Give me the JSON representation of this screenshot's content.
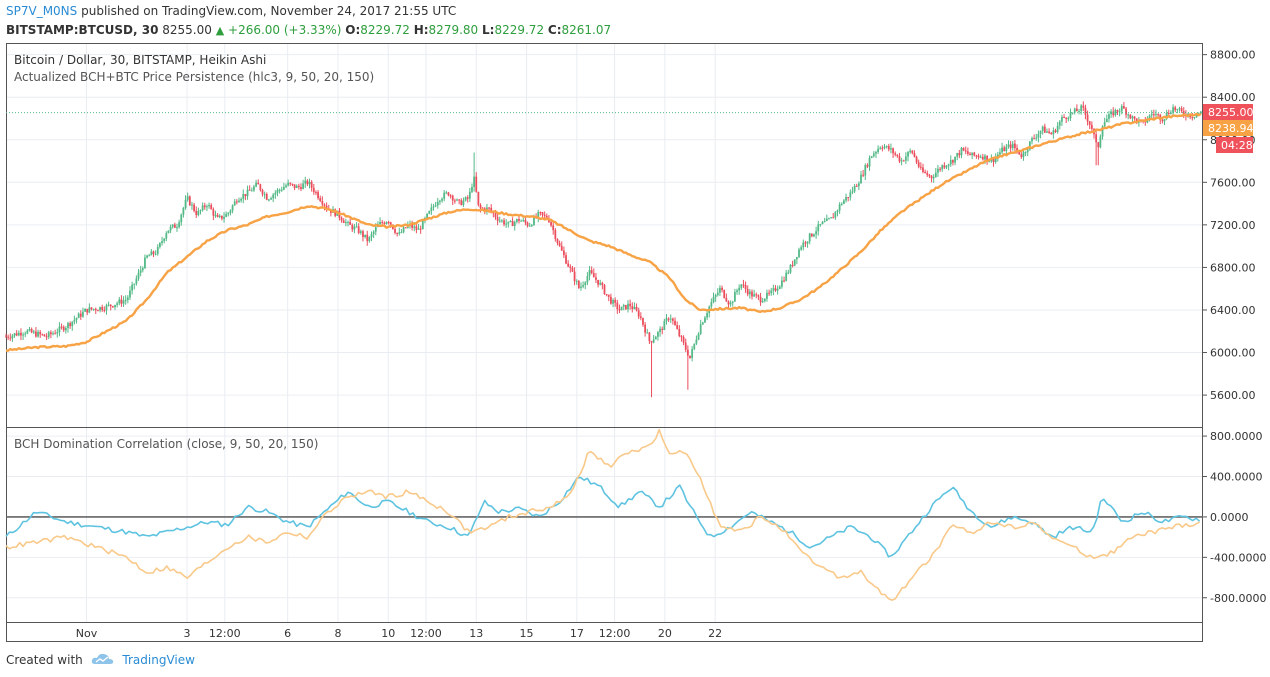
{
  "header": {
    "author": "SP7V_M0NS",
    "published": "published on TradingView.com, November 24, 2017 21:55 UTC",
    "symbol": "BITSTAMP:BTCUSD, 30",
    "last": "8255.00",
    "change": "+266.00 (+3.33%)",
    "o_label": "O:",
    "o": "8229.72",
    "h_label": "H:",
    "h": "8279.80",
    "l_label": "L:",
    "l": "8229.72",
    "c_label": "C:",
    "c": "8261.07"
  },
  "main_pane": {
    "title": "Bitcoin / Dollar, 30, BITSTAMP, Heikin Ashi",
    "indicator": "Actualized BCH+BTC Price Persistence (hlc3, 9, 50, 20, 150)",
    "price_badge": "8255.00",
    "indicator_badge": "8238.94",
    "countdown_badge": "04:28"
  },
  "lower_pane": {
    "title": "BCH Domination Correlation (close, 9, 50, 20, 150)"
  },
  "x_ticks": [
    "Nov",
    "3",
    "12:00",
    "6",
    "8",
    "10",
    "12:00",
    "13",
    "15",
    "17",
    "12:00",
    "20",
    "22"
  ],
  "colors": {
    "up": "#53b987",
    "down": "#eb4d5c",
    "orange": "#f7a245",
    "blue": "#5ec3e0",
    "light_orange": "#f9c98a",
    "badge_red": "#f0525c",
    "badge_orange": "#f7a245",
    "grid": "#e9edf2"
  },
  "chart_data": [
    {
      "type": "candlestick",
      "title": "Bitcoin / Dollar, 30, BITSTAMP, Heikin Ashi",
      "ylim": [
        5300,
        8900
      ],
      "yticks": [
        5600,
        6000,
        6400,
        6800,
        7200,
        7600,
        8000,
        8400,
        8800
      ],
      "ytick_labels": [
        "5600.00",
        "6000.00",
        "6400.00",
        "6800.00",
        "7200.00",
        "7600.00",
        "8000.00",
        "8400.00",
        "8800.00"
      ],
      "x_day_range": [
        -0.6,
        23.2
      ],
      "price_path": [
        [
          -0.6,
          6150
        ],
        [
          -0.2,
          6200
        ],
        [
          0.2,
          6150
        ],
        [
          0.6,
          6250
        ],
        [
          1.0,
          6400
        ],
        [
          1.4,
          6430
        ],
        [
          1.8,
          6500
        ],
        [
          2.2,
          6900
        ],
        [
          2.4,
          6950
        ],
        [
          2.6,
          7150
        ],
        [
          2.8,
          7200
        ],
        [
          3.0,
          7450
        ],
        [
          3.2,
          7300
        ],
        [
          3.4,
          7400
        ],
        [
          3.6,
          7250
        ],
        [
          3.8,
          7300
        ],
        [
          4.0,
          7450
        ],
        [
          4.2,
          7500
        ],
        [
          4.4,
          7580
        ],
        [
          4.6,
          7450
        ],
        [
          4.8,
          7520
        ],
        [
          5.0,
          7580
        ],
        [
          5.2,
          7550
        ],
        [
          5.4,
          7600
        ],
        [
          5.6,
          7480
        ],
        [
          5.8,
          7350
        ],
        [
          6.0,
          7300
        ],
        [
          6.2,
          7200
        ],
        [
          6.4,
          7150
        ],
        [
          6.6,
          7050
        ],
        [
          6.8,
          7200
        ],
        [
          7.0,
          7250
        ],
        [
          7.2,
          7100
        ],
        [
          7.4,
          7200
        ],
        [
          7.6,
          7150
        ],
        [
          7.8,
          7300
        ],
        [
          8.0,
          7450
        ],
        [
          8.2,
          7500
        ],
        [
          8.4,
          7400
        ],
        [
          8.6,
          7450
        ],
        [
          8.7,
          7650
        ],
        [
          8.8,
          7350
        ],
        [
          9.0,
          7350
        ],
        [
          9.2,
          7250
        ],
        [
          9.4,
          7200
        ],
        [
          9.6,
          7250
        ],
        [
          9.8,
          7200
        ],
        [
          10.0,
          7300
        ],
        [
          10.2,
          7250
        ],
        [
          10.4,
          7000
        ],
        [
          10.6,
          6800
        ],
        [
          10.8,
          6600
        ],
        [
          11.0,
          6750
        ],
        [
          11.2,
          6650
        ],
        [
          11.4,
          6500
        ],
        [
          11.6,
          6400
        ],
        [
          11.8,
          6450
        ],
        [
          12.0,
          6350
        ],
        [
          12.2,
          6100
        ],
        [
          12.4,
          6200
        ],
        [
          12.6,
          6350
        ],
        [
          12.8,
          6150
        ],
        [
          13.0,
          5950
        ],
        [
          13.2,
          6250
        ],
        [
          13.4,
          6450
        ],
        [
          13.6,
          6600
        ],
        [
          13.8,
          6450
        ],
        [
          14.0,
          6650
        ],
        [
          14.2,
          6550
        ],
        [
          14.4,
          6500
        ],
        [
          14.6,
          6550
        ],
        [
          14.8,
          6650
        ],
        [
          15.0,
          6800
        ],
        [
          15.2,
          7000
        ],
        [
          15.4,
          7100
        ],
        [
          15.6,
          7200
        ],
        [
          15.8,
          7250
        ],
        [
          16.0,
          7400
        ],
        [
          16.2,
          7500
        ],
        [
          16.4,
          7650
        ],
        [
          16.6,
          7850
        ],
        [
          16.8,
          7950
        ],
        [
          17.0,
          7900
        ],
        [
          17.2,
          7800
        ],
        [
          17.4,
          7900
        ],
        [
          17.6,
          7700
        ],
        [
          17.8,
          7650
        ],
        [
          18.0,
          7750
        ],
        [
          18.2,
          7800
        ],
        [
          18.4,
          7900
        ],
        [
          18.6,
          7850
        ],
        [
          18.8,
          7850
        ],
        [
          19.0,
          7800
        ],
        [
          19.2,
          7900
        ],
        [
          19.4,
          7950
        ],
        [
          19.6,
          7850
        ],
        [
          19.8,
          8000
        ],
        [
          20.0,
          8100
        ],
        [
          20.2,
          8050
        ],
        [
          20.4,
          8200
        ],
        [
          20.6,
          8250
        ],
        [
          20.8,
          8300
        ],
        [
          21.0,
          8100
        ],
        [
          21.1,
          7900
        ],
        [
          21.2,
          8150
        ],
        [
          21.4,
          8250
        ],
        [
          21.6,
          8300
        ],
        [
          21.8,
          8200
        ],
        [
          22.0,
          8150
        ],
        [
          22.2,
          8250
        ],
        [
          22.4,
          8200
        ],
        [
          22.6,
          8300
        ],
        [
          22.8,
          8250
        ],
        [
          23.0,
          8230
        ],
        [
          23.2,
          8260
        ]
      ],
      "spikes": [
        {
          "x": 8.7,
          "high": 7880
        },
        {
          "x": 12.25,
          "low": 5580
        },
        {
          "x": 12.95,
          "low": 5650
        },
        {
          "x": 21.1,
          "low": 7760
        }
      ],
      "persistence_line": [
        [
          -0.6,
          6020
        ],
        [
          0,
          6050
        ],
        [
          0.6,
          6060
        ],
        [
          1.0,
          6100
        ],
        [
          1.4,
          6200
        ],
        [
          1.8,
          6300
        ],
        [
          2.2,
          6500
        ],
        [
          2.6,
          6750
        ],
        [
          3.0,
          6900
        ],
        [
          3.4,
          7050
        ],
        [
          3.8,
          7150
        ],
        [
          4.2,
          7200
        ],
        [
          4.6,
          7280
        ],
        [
          5.0,
          7320
        ],
        [
          5.4,
          7380
        ],
        [
          5.8,
          7350
        ],
        [
          6.2,
          7280
        ],
        [
          6.6,
          7200
        ],
        [
          7.0,
          7180
        ],
        [
          7.4,
          7200
        ],
        [
          7.8,
          7260
        ],
        [
          8.2,
          7320
        ],
        [
          8.6,
          7350
        ],
        [
          9.0,
          7330
        ],
        [
          9.4,
          7300
        ],
        [
          9.8,
          7280
        ],
        [
          10.2,
          7250
        ],
        [
          10.6,
          7150
        ],
        [
          11.0,
          7050
        ],
        [
          11.4,
          7000
        ],
        [
          11.8,
          6920
        ],
        [
          12.2,
          6850
        ],
        [
          12.6,
          6700
        ],
        [
          12.9,
          6500
        ],
        [
          13.2,
          6400
        ],
        [
          13.6,
          6410
        ],
        [
          14.0,
          6420
        ],
        [
          14.4,
          6380
        ],
        [
          14.8,
          6420
        ],
        [
          15.2,
          6500
        ],
        [
          15.6,
          6620
        ],
        [
          16.0,
          6780
        ],
        [
          16.4,
          6950
        ],
        [
          16.8,
          7150
        ],
        [
          17.2,
          7320
        ],
        [
          17.6,
          7450
        ],
        [
          18.0,
          7580
        ],
        [
          18.4,
          7680
        ],
        [
          18.8,
          7780
        ],
        [
          19.2,
          7850
        ],
        [
          19.6,
          7900
        ],
        [
          20.0,
          7960
        ],
        [
          20.4,
          8010
        ],
        [
          20.8,
          8060
        ],
        [
          21.2,
          8100
        ],
        [
          21.6,
          8150
        ],
        [
          22.0,
          8180
        ],
        [
          22.4,
          8210
        ],
        [
          22.8,
          8230
        ],
        [
          23.2,
          8239
        ]
      ],
      "last_price": 8255.0,
      "last_indicator": 8238.94
    },
    {
      "type": "line",
      "title": "BCH Domination Correlation (close, 9, 50, 20, 150)",
      "ylim": [
        -1040,
        880
      ],
      "yticks": [
        800,
        400,
        0,
        -400,
        -800
      ],
      "ytick_labels": [
        "800.0000",
        "400.0000",
        "0.0000",
        "-400.0000",
        "-800.0000"
      ],
      "zero_line": 0,
      "series": [
        {
          "color": "blue",
          "points": [
            [
              -0.6,
              -200
            ],
            [
              0,
              50
            ],
            [
              0.6,
              -50
            ],
            [
              1.2,
              -100
            ],
            [
              1.8,
              -150
            ],
            [
              2.2,
              -200
            ],
            [
              2.6,
              -150
            ],
            [
              3.0,
              -100
            ],
            [
              3.4,
              -50
            ],
            [
              3.8,
              -80
            ],
            [
              4.2,
              100
            ],
            [
              4.6,
              50
            ],
            [
              5.0,
              -50
            ],
            [
              5.4,
              -100
            ],
            [
              5.8,
              80
            ],
            [
              6.2,
              250
            ],
            [
              6.6,
              100
            ],
            [
              7.0,
              150
            ],
            [
              7.4,
              50
            ],
            [
              7.8,
              -50
            ],
            [
              8.2,
              -100
            ],
            [
              8.6,
              -200
            ],
            [
              8.9,
              150
            ],
            [
              9.2,
              50
            ],
            [
              9.6,
              80
            ],
            [
              10.0,
              0
            ],
            [
              10.4,
              150
            ],
            [
              10.8,
              400
            ],
            [
              11.0,
              350
            ],
            [
              11.2,
              300
            ],
            [
              11.6,
              100
            ],
            [
              12.0,
              250
            ],
            [
              12.4,
              100
            ],
            [
              12.8,
              300
            ],
            [
              13.0,
              100
            ],
            [
              13.4,
              -200
            ],
            [
              13.8,
              -100
            ],
            [
              14.2,
              50
            ],
            [
              14.6,
              -50
            ],
            [
              15.0,
              -150
            ],
            [
              15.4,
              -300
            ],
            [
              15.8,
              -200
            ],
            [
              16.2,
              -100
            ],
            [
              16.6,
              -200
            ],
            [
              17.0,
              -400
            ],
            [
              17.4,
              -150
            ],
            [
              17.8,
              100
            ],
            [
              18.2,
              300
            ],
            [
              18.6,
              50
            ],
            [
              19.0,
              -100
            ],
            [
              19.4,
              0
            ],
            [
              19.8,
              -50
            ],
            [
              20.2,
              -200
            ],
            [
              20.6,
              -100
            ],
            [
              21.0,
              -150
            ],
            [
              21.2,
              200
            ],
            [
              21.6,
              -50
            ],
            [
              22.0,
              50
            ],
            [
              22.4,
              -50
            ],
            [
              22.8,
              0
            ],
            [
              23.2,
              -30
            ]
          ]
        },
        {
          "color": "light_orange",
          "points": [
            [
              -0.6,
              -300
            ],
            [
              0,
              -250
            ],
            [
              0.6,
              -200
            ],
            [
              1.2,
              -300
            ],
            [
              1.8,
              -400
            ],
            [
              2.2,
              -550
            ],
            [
              2.6,
              -500
            ],
            [
              3.0,
              -600
            ],
            [
              3.4,
              -450
            ],
            [
              3.8,
              -300
            ],
            [
              4.2,
              -200
            ],
            [
              4.6,
              -250
            ],
            [
              5.0,
              -150
            ],
            [
              5.4,
              -200
            ],
            [
              5.8,
              50
            ],
            [
              6.2,
              200
            ],
            [
              6.6,
              250
            ],
            [
              7.0,
              200
            ],
            [
              7.4,
              250
            ],
            [
              7.8,
              150
            ],
            [
              8.2,
              50
            ],
            [
              8.6,
              -150
            ],
            [
              9.0,
              -100
            ],
            [
              9.4,
              0
            ],
            [
              9.8,
              50
            ],
            [
              10.2,
              100
            ],
            [
              10.6,
              200
            ],
            [
              11.0,
              650
            ],
            [
              11.4,
              500
            ],
            [
              11.8,
              650
            ],
            [
              12.2,
              700
            ],
            [
              12.4,
              850
            ],
            [
              12.6,
              600
            ],
            [
              12.9,
              650
            ],
            [
              13.2,
              400
            ],
            [
              13.6,
              -100
            ],
            [
              14.0,
              -150
            ],
            [
              14.4,
              0
            ],
            [
              14.8,
              -100
            ],
            [
              15.2,
              -350
            ],
            [
              15.6,
              -500
            ],
            [
              16.0,
              -600
            ],
            [
              16.4,
              -550
            ],
            [
              16.8,
              -750
            ],
            [
              17.0,
              -850
            ],
            [
              17.4,
              -600
            ],
            [
              17.8,
              -400
            ],
            [
              18.2,
              -100
            ],
            [
              18.6,
              -150
            ],
            [
              19.0,
              -50
            ],
            [
              19.4,
              -100
            ],
            [
              19.8,
              -50
            ],
            [
              20.2,
              -200
            ],
            [
              20.6,
              -300
            ],
            [
              21.0,
              -400
            ],
            [
              21.4,
              -350
            ],
            [
              21.8,
              -200
            ],
            [
              22.2,
              -150
            ],
            [
              22.6,
              -100
            ],
            [
              23.2,
              -50
            ]
          ]
        }
      ]
    }
  ]
}
